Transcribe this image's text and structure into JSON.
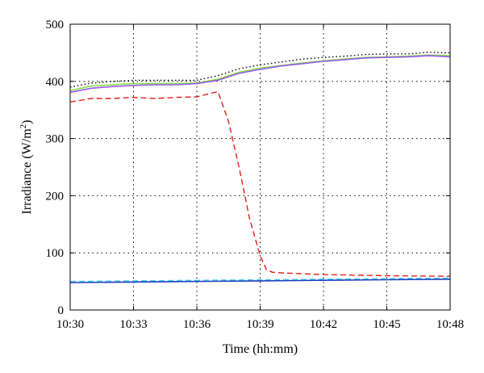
{
  "chart_data": {
    "type": "line",
    "title": "",
    "xlabel": "Time (hh:mm)",
    "ylabel_main": "Irradiance (W/m",
    "ylabel_sup": "2",
    "ylabel_close": ")",
    "x_categories": [
      "10:30",
      "10:33",
      "10:36",
      "10:39",
      "10:42",
      "10:45",
      "10:48"
    ],
    "x_minutes_from_start": [
      0,
      3,
      6,
      9,
      12,
      15,
      18
    ],
    "xlim": [
      0,
      18
    ],
    "ylim": [
      0,
      500
    ],
    "yticks": [
      0,
      100,
      200,
      300,
      400,
      500
    ],
    "grid": true,
    "legend": "none",
    "series": [
      {
        "color": "#000000",
        "style": "dotted",
        "x": [
          0,
          1,
          2,
          3,
          4,
          5,
          6,
          7,
          8,
          9,
          10,
          11,
          12,
          13,
          14,
          15,
          16,
          17,
          18
        ],
        "values": [
          390,
          397,
          400,
          402,
          402,
          402,
          402,
          410,
          422,
          429,
          434,
          439,
          442,
          444,
          447,
          448,
          448,
          451,
          450
        ]
      },
      {
        "color": "#80e040",
        "style": "solid",
        "x": [
          0,
          1,
          2,
          3,
          4,
          5,
          6,
          7,
          8,
          9,
          10,
          11,
          12,
          13,
          14,
          15,
          16,
          17,
          18
        ],
        "values": [
          384,
          392,
          394,
          396,
          396,
          396,
          397,
          404,
          416,
          423,
          428,
          432,
          436,
          439,
          442,
          443,
          444,
          446,
          445
        ]
      },
      {
        "color": "#9b59f0",
        "style": "solid",
        "x": [
          0,
          1,
          2,
          3,
          4,
          5,
          6,
          7,
          8,
          9,
          10,
          11,
          12,
          13,
          14,
          15,
          16,
          17,
          18
        ],
        "values": [
          381,
          388,
          391,
          393,
          394,
          394,
          396,
          402,
          414,
          421,
          427,
          431,
          435,
          438,
          441,
          442,
          443,
          445,
          443
        ]
      },
      {
        "color": "#e02020",
        "style": "dashed",
        "x": [
          0,
          1,
          2,
          3,
          4,
          5,
          6,
          7,
          7.5,
          8,
          8.5,
          9,
          9.3,
          9.6,
          10,
          12,
          15,
          18
        ],
        "values": [
          364,
          370,
          370,
          372,
          370,
          372,
          373,
          382,
          330,
          250,
          160,
          95,
          70,
          66,
          65,
          62,
          60,
          59
        ]
      },
      {
        "color": "#40d0e8",
        "style": "dashed",
        "x": [
          0,
          3,
          6,
          9,
          12,
          15,
          18
        ],
        "values": [
          50,
          51,
          52,
          53,
          54,
          55,
          56
        ]
      },
      {
        "color": "#1f3fbf",
        "style": "solid",
        "x": [
          0,
          3,
          6,
          9,
          12,
          15,
          18
        ],
        "values": [
          48,
          49,
          50,
          51,
          52,
          53,
          54
        ]
      }
    ]
  }
}
